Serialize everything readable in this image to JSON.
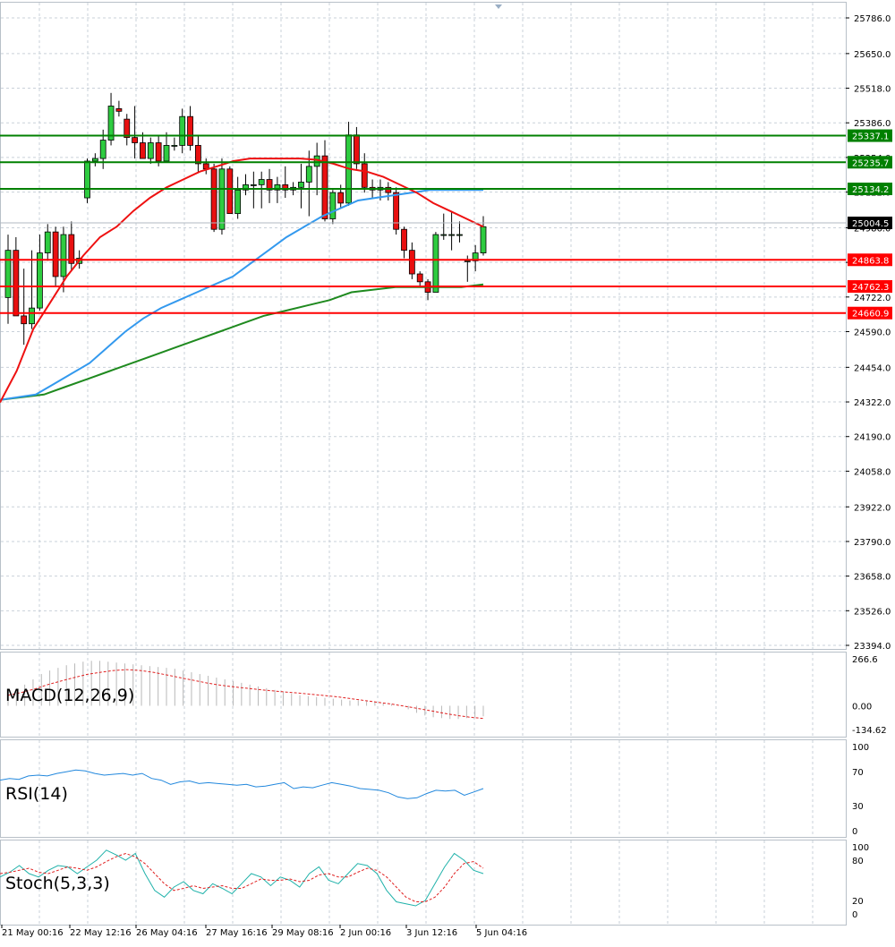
{
  "chart_data": [
    {
      "type": "candlestick",
      "panel": "main",
      "price_axis_ticks": [
        25786.0,
        25650.0,
        25518.0,
        25386.0,
        25254.0,
        25122.0,
        24986.0,
        24854.0,
        24722.0,
        24590.0,
        24454.0,
        24322.0,
        24190.0,
        24058.0,
        23922.0,
        23790.0,
        23658.0,
        23526.0,
        23394.0
      ],
      "ylim": [
        23394.0,
        25786.0
      ],
      "current_price": 25004.5,
      "levels": [
        {
          "value": 25337.1,
          "label": "25337.1",
          "color": "#008000"
        },
        {
          "value": 25235.7,
          "label": "25235.7",
          "color": "#008000"
        },
        {
          "value": 25134.2,
          "label": "25134.2",
          "color": "#008000"
        },
        {
          "value": 24863.8,
          "label": "24863.8",
          "color": "#ff0000"
        },
        {
          "value": 24762.3,
          "label": "24762.3",
          "color": "#ff0000"
        },
        {
          "value": 24660.9,
          "label": "24660.9",
          "color": "#ff0000"
        }
      ],
      "x_axis_labels": [
        "21 May 00:16",
        "22 May 12:16",
        "26 May 04:16",
        "27 May 16:16",
        "29 May 08:16",
        "2 Jun 00:16",
        "3 Jun 12:16",
        "5 Jun 04:16"
      ],
      "candles": [
        {
          "o": 24720,
          "h": 24960,
          "l": 24620,
          "c": 24900
        },
        {
          "o": 24900,
          "h": 24950,
          "l": 24650,
          "c": 24650
        },
        {
          "o": 24650,
          "h": 24830,
          "l": 24540,
          "c": 24620
        },
        {
          "o": 24620,
          "h": 24900,
          "l": 24600,
          "c": 24680
        },
        {
          "o": 24680,
          "h": 24960,
          "l": 24670,
          "c": 24890
        },
        {
          "o": 24890,
          "h": 25000,
          "l": 24860,
          "c": 24970
        },
        {
          "o": 24970,
          "h": 24990,
          "l": 24760,
          "c": 24800
        },
        {
          "o": 24800,
          "h": 24990,
          "l": 24740,
          "c": 24960
        },
        {
          "o": 24960,
          "h": 25010,
          "l": 24820,
          "c": 24850
        },
        {
          "o": 24850,
          "h": 24900,
          "l": 24830,
          "c": 24870
        },
        {
          "o": 25100,
          "h": 25250,
          "l": 25080,
          "c": 25240
        },
        {
          "o": 25240,
          "h": 25270,
          "l": 25220,
          "c": 25250
        },
        {
          "o": 25250,
          "h": 25360,
          "l": 25210,
          "c": 25320
        },
        {
          "o": 25320,
          "h": 25500,
          "l": 25300,
          "c": 25450
        },
        {
          "o": 25440,
          "h": 25470,
          "l": 25410,
          "c": 25430
        },
        {
          "o": 25400,
          "h": 25420,
          "l": 25300,
          "c": 25330
        },
        {
          "o": 25330,
          "h": 25450,
          "l": 25250,
          "c": 25310
        },
        {
          "o": 25310,
          "h": 25350,
          "l": 25250,
          "c": 25250
        },
        {
          "o": 25250,
          "h": 25330,
          "l": 25230,
          "c": 25310
        },
        {
          "o": 25310,
          "h": 25340,
          "l": 25220,
          "c": 25240
        },
        {
          "o": 25240,
          "h": 25350,
          "l": 25240,
          "c": 25300
        },
        {
          "o": 25300,
          "h": 25330,
          "l": 25280,
          "c": 25300
        },
        {
          "o": 25300,
          "h": 25440,
          "l": 25270,
          "c": 25410
        },
        {
          "o": 25410,
          "h": 25450,
          "l": 25280,
          "c": 25300
        },
        {
          "o": 25300,
          "h": 25340,
          "l": 25200,
          "c": 25230
        },
        {
          "o": 25230,
          "h": 25250,
          "l": 25190,
          "c": 25210
        },
        {
          "o": 25210,
          "h": 25230,
          "l": 24970,
          "c": 24980
        },
        {
          "o": 24980,
          "h": 25250,
          "l": 24960,
          "c": 25210
        },
        {
          "o": 25210,
          "h": 25220,
          "l": 25040,
          "c": 25040
        },
        {
          "o": 25040,
          "h": 25180,
          "l": 25020,
          "c": 25130
        },
        {
          "o": 25130,
          "h": 25190,
          "l": 25110,
          "c": 25150
        },
        {
          "o": 25150,
          "h": 25200,
          "l": 25060,
          "c": 25150
        },
        {
          "o": 25150,
          "h": 25200,
          "l": 25060,
          "c": 25170
        },
        {
          "o": 25170,
          "h": 25210,
          "l": 25080,
          "c": 25130
        },
        {
          "o": 25130,
          "h": 25180,
          "l": 25080,
          "c": 25150
        },
        {
          "o": 25150,
          "h": 25220,
          "l": 25100,
          "c": 25130
        },
        {
          "o": 25130,
          "h": 25160,
          "l": 25110,
          "c": 25140
        },
        {
          "o": 25140,
          "h": 25230,
          "l": 25060,
          "c": 25160
        },
        {
          "o": 25160,
          "h": 25280,
          "l": 25030,
          "c": 25220
        },
        {
          "o": 25220,
          "h": 25310,
          "l": 25110,
          "c": 25260
        },
        {
          "o": 25260,
          "h": 25320,
          "l": 25010,
          "c": 25020
        },
        {
          "o": 25020,
          "h": 25130,
          "l": 25000,
          "c": 25120
        },
        {
          "o": 25120,
          "h": 25150,
          "l": 25060,
          "c": 25080
        },
        {
          "o": 25080,
          "h": 25390,
          "l": 25070,
          "c": 25340
        },
        {
          "o": 25340,
          "h": 25370,
          "l": 25210,
          "c": 25230
        },
        {
          "o": 25230,
          "h": 25270,
          "l": 25120,
          "c": 25140
        },
        {
          "o": 25140,
          "h": 25170,
          "l": 25100,
          "c": 25130
        },
        {
          "o": 25130,
          "h": 25170,
          "l": 25090,
          "c": 25140
        },
        {
          "o": 25140,
          "h": 25160,
          "l": 25090,
          "c": 25120
        },
        {
          "o": 25120,
          "h": 25140,
          "l": 24960,
          "c": 24980
        },
        {
          "o": 24980,
          "h": 24990,
          "l": 24870,
          "c": 24900
        },
        {
          "o": 24900,
          "h": 24930,
          "l": 24790,
          "c": 24810
        },
        {
          "o": 24810,
          "h": 24820,
          "l": 24760,
          "c": 24780
        },
        {
          "o": 24780,
          "h": 24790,
          "l": 24710,
          "c": 24740
        },
        {
          "o": 24740,
          "h": 24970,
          "l": 24740,
          "c": 24960
        },
        {
          "o": 24960,
          "h": 25040,
          "l": 24940,
          "c": 24960
        },
        {
          "o": 24960,
          "h": 25050,
          "l": 24900,
          "c": 24960
        },
        {
          "o": 24960,
          "h": 25010,
          "l": 24930,
          "c": 24960
        },
        {
          "o": 24860,
          "h": 24880,
          "l": 24780,
          "c": 24860
        },
        {
          "o": 24860,
          "h": 24920,
          "l": 24820,
          "c": 24890
        },
        {
          "o": 24890,
          "h": 25030,
          "l": 24880,
          "c": 24990
        }
      ],
      "ma_red": [
        24320,
        24440,
        24600,
        24700,
        24800,
        24880,
        24950,
        24990,
        25050,
        25100,
        25140,
        25170,
        25200,
        25220,
        25240,
        25250,
        25250,
        25250,
        25250,
        25245,
        25230,
        25210,
        25200,
        25180,
        25150,
        25120,
        25080,
        25050,
        25020,
        24990
      ],
      "ma_blue": [
        24330,
        24340,
        24350,
        24390,
        24430,
        24470,
        24530,
        24590,
        24640,
        24680,
        24710,
        24740,
        24770,
        24800,
        24850,
        24900,
        24950,
        24990,
        25030,
        25060,
        25090,
        25100,
        25110,
        25120,
        25130,
        25130,
        25130,
        25130
      ],
      "ma_green": [
        24330,
        24340,
        24350,
        24380,
        24410,
        24440,
        24470,
        24500,
        24530,
        24560,
        24590,
        24620,
        24650,
        24670,
        24690,
        24710,
        24740,
        24750,
        24760,
        24760,
        24760,
        24760,
        24770
      ]
    },
    {
      "type": "bar",
      "panel": "macd",
      "title": "MACD(12,26,9)",
      "axis_ticks": [
        266.6,
        0.0,
        -134.62
      ],
      "axis_tick_labels": [
        "266.6",
        "0.00",
        "-134.62"
      ],
      "ylim": [
        -134.62,
        266.6
      ],
      "histogram": [
        60,
        80,
        120,
        150,
        180,
        200,
        215,
        230,
        240,
        250,
        255,
        255,
        250,
        245,
        240,
        235,
        230,
        225,
        220,
        215,
        210,
        200,
        190,
        180,
        170,
        160,
        150,
        140,
        130,
        120,
        110,
        100,
        90,
        80,
        70,
        60,
        55,
        50,
        45,
        40,
        35,
        30,
        30,
        25,
        20,
        15,
        10,
        0,
        -20,
        -40,
        -55,
        -65,
        -70,
        -75,
        -75,
        -70,
        -65,
        -60
      ],
      "signal": [
        60,
        75,
        95,
        120,
        140,
        160,
        178,
        190,
        200,
        205,
        200,
        190,
        175,
        160,
        145,
        130,
        118,
        108,
        100,
        92,
        85,
        78,
        72,
        65,
        58,
        50,
        40,
        30,
        20,
        10,
        -2,
        -15,
        -28,
        -42,
        -55,
        -65,
        -72
      ]
    },
    {
      "type": "line",
      "panel": "rsi",
      "title": "RSI(14)",
      "axis_ticks": [
        100,
        70,
        30,
        0
      ],
      "axis_tick_labels": [
        "100",
        "70",
        "30",
        "0"
      ],
      "ylim": [
        0,
        100
      ],
      "values": [
        60,
        62,
        61,
        65,
        66,
        65,
        68,
        70,
        72,
        71,
        68,
        66,
        67,
        68,
        66,
        68,
        62,
        60,
        55,
        58,
        59,
        56,
        57,
        56,
        55,
        54,
        55,
        52,
        53,
        55,
        57,
        50,
        52,
        51,
        54,
        57,
        55,
        53,
        50,
        49,
        48,
        45,
        40,
        38,
        39,
        44,
        48,
        47,
        48,
        42,
        46,
        50
      ]
    },
    {
      "type": "line",
      "panel": "stoch",
      "title": "Stoch(5,3,3)",
      "axis_ticks": [
        100,
        80,
        20,
        0
      ],
      "axis_tick_labels": [
        "100",
        "80",
        "20",
        "0"
      ],
      "ylim": [
        0,
        100
      ],
      "main": [
        55,
        62,
        72,
        60,
        55,
        65,
        72,
        70,
        60,
        70,
        80,
        95,
        88,
        80,
        90,
        60,
        35,
        25,
        40,
        48,
        35,
        30,
        45,
        38,
        30,
        45,
        60,
        55,
        42,
        55,
        50,
        40,
        60,
        70,
        50,
        45,
        60,
        75,
        72,
        60,
        35,
        18,
        15,
        12,
        20,
        45,
        70,
        90,
        80,
        65,
        60
      ],
      "signal": [
        60,
        62,
        65,
        68,
        62,
        60,
        65,
        70,
        68,
        65,
        70,
        78,
        85,
        90,
        85,
        75,
        60,
        45,
        35,
        38,
        42,
        38,
        40,
        42,
        38,
        38,
        45,
        52,
        50,
        50,
        52,
        48,
        50,
        58,
        60,
        55,
        55,
        62,
        68,
        65,
        55,
        40,
        25,
        18,
        18,
        25,
        40,
        60,
        75,
        78,
        68
      ]
    }
  ]
}
